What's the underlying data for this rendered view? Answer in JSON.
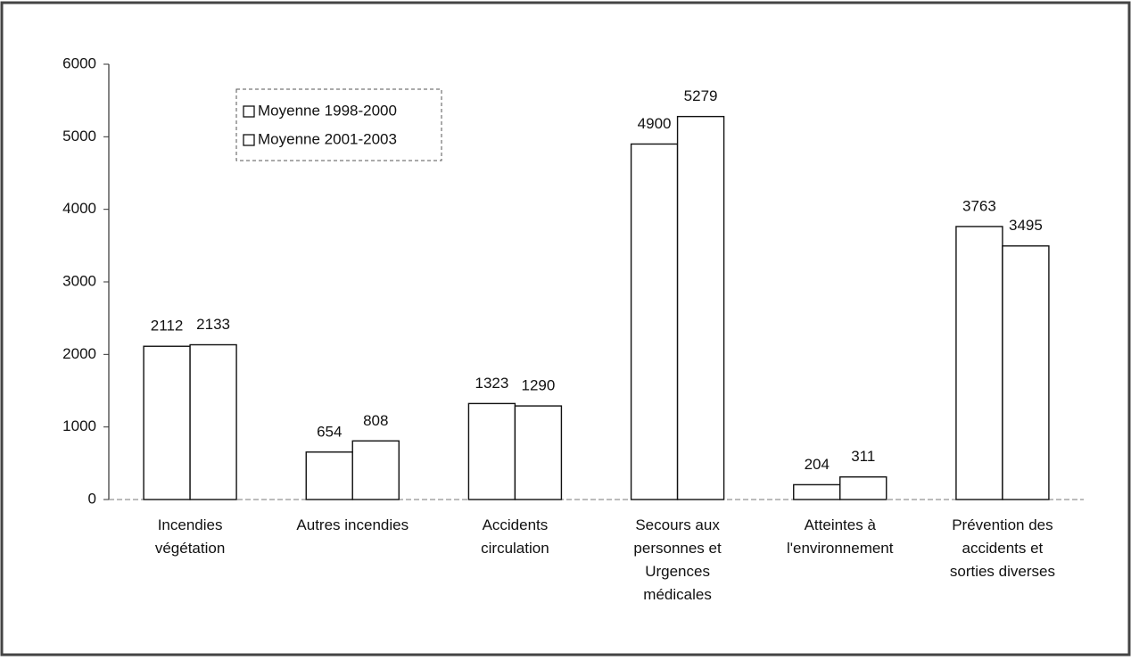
{
  "chart_data": {
    "type": "bar",
    "categories": [
      "Incendies\nvégétation",
      "Autres incendies",
      "Accidents\ncirculation",
      "Secours aux\npersonnes et\nUrgences\nmédicales",
      "Atteintes à\nl'environnement",
      "Prévention des\naccidents et\nsorties diverses"
    ],
    "series": [
      {
        "name": "Moyenne 1998-2000",
        "color": "#ffffff",
        "values": [
          2112,
          654,
          1323,
          4900,
          204,
          3763
        ]
      },
      {
        "name": "Moyenne 2001-2003",
        "color": "#ffffff",
        "values": [
          2133,
          808,
          1290,
          5279,
          311,
          3495
        ]
      }
    ],
    "ylim": [
      0,
      6000
    ],
    "yticks": [
      0,
      1000,
      2000,
      3000,
      4000,
      5000,
      6000
    ],
    "grid": false,
    "legend": "top-left"
  }
}
